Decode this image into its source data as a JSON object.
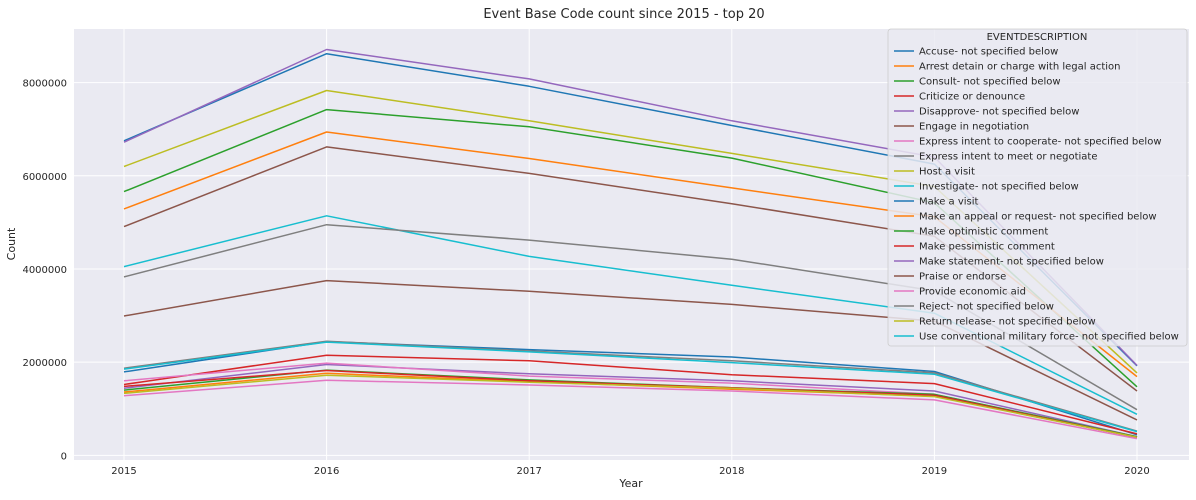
{
  "chart_data": {
    "type": "line",
    "title": "Event Base Code count since 2015 - top 20",
    "xlabel": "Year",
    "ylabel": "Count",
    "x": [
      2015,
      2016,
      2017,
      2018,
      2019,
      2020
    ],
    "x_tick_labels": [
      "2015",
      "2016",
      "2017",
      "2018",
      "2019",
      "2020"
    ],
    "ylim": [
      -100000,
      9150000
    ],
    "y_ticks": [
      0,
      2000000,
      4000000,
      6000000,
      8000000
    ],
    "y_tick_labels": [
      "0",
      "2000000",
      "4000000",
      "6000000",
      "8000000"
    ],
    "grid": true,
    "legend_title": "EVENTDESCRIPTION",
    "legend_position": "top-right",
    "series": [
      {
        "name": "Accuse- not specified below",
        "color": "#1f77b4",
        "values": [
          1790000,
          2440000,
          2270000,
          2110000,
          1800000,
          440000
        ]
      },
      {
        "name": "Arrest detain or charge with legal action",
        "color": "#ff7f0e",
        "values": [
          1360000,
          1760000,
          1580000,
          1420000,
          1270000,
          390000
        ]
      },
      {
        "name": "Consult- not specified below",
        "color": "#2ca02c",
        "values": [
          5660000,
          7420000,
          7050000,
          6380000,
          5420000,
          1470000
        ]
      },
      {
        "name": "Criticize or denounce",
        "color": "#d62728",
        "values": [
          1520000,
          2150000,
          2030000,
          1730000,
          1540000,
          460000
        ]
      },
      {
        "name": "Disapprove- not specified below",
        "color": "#9467bd",
        "values": [
          1440000,
          1950000,
          1750000,
          1600000,
          1380000,
          400000
        ]
      },
      {
        "name": "Engage in negotiation",
        "color": "#8c564b",
        "values": [
          4910000,
          6620000,
          6050000,
          5400000,
          4700000,
          1380000
        ]
      },
      {
        "name": "Express intent to cooperate- not specified below",
        "color": "#e377c2",
        "values": [
          1600000,
          1980000,
          1700000,
          1550000,
          1310000,
          380000
        ]
      },
      {
        "name": "Express intent to meet or negotiate",
        "color": "#7f7f7f",
        "values": [
          1870000,
          2450000,
          2240000,
          2030000,
          1770000,
          520000
        ]
      },
      {
        "name": "Host a visit",
        "color": "#bcbd22",
        "values": [
          6200000,
          7830000,
          7180000,
          6480000,
          5770000,
          1770000
        ]
      },
      {
        "name": "Investigate- not specified below",
        "color": "#17becf",
        "values": [
          4050000,
          5140000,
          4270000,
          3650000,
          3050000,
          880000
        ]
      },
      {
        "name": "Make a visit",
        "color": "#1f77b4",
        "values": [
          6750000,
          8620000,
          7920000,
          7080000,
          6250000,
          1920000
        ]
      },
      {
        "name": "Make an appeal or request- not specified below",
        "color": "#ff7f0e",
        "values": [
          5290000,
          6940000,
          6370000,
          5740000,
          5120000,
          1690000
        ]
      },
      {
        "name": "Make optimistic comment",
        "color": "#2ca02c",
        "values": [
          1400000,
          1830000,
          1620000,
          1450000,
          1310000,
          400000
        ]
      },
      {
        "name": "Make pessimistic comment",
        "color": "#d62728",
        "values": [
          1480000,
          1820000,
          1600000,
          1450000,
          1290000,
          390000
        ]
      },
      {
        "name": "Make statement- not specified below",
        "color": "#9467bd",
        "values": [
          6720000,
          8710000,
          8080000,
          7180000,
          6400000,
          1930000
        ]
      },
      {
        "name": "Praise or endorse",
        "color": "#8c564b",
        "values": [
          2990000,
          3750000,
          3520000,
          3240000,
          2880000,
          760000
        ]
      },
      {
        "name": "Provide economic aid",
        "color": "#e377c2",
        "values": [
          1280000,
          1610000,
          1510000,
          1380000,
          1190000,
          360000
        ]
      },
      {
        "name": "Reject- not specified below",
        "color": "#7f7f7f",
        "values": [
          3830000,
          4950000,
          4620000,
          4210000,
          3530000,
          980000
        ]
      },
      {
        "name": "Return release- not specified below",
        "color": "#bcbd22",
        "values": [
          1330000,
          1720000,
          1570000,
          1440000,
          1260000,
          390000
        ]
      },
      {
        "name": "Use conventional military force- not specified below",
        "color": "#17becf",
        "values": [
          1850000,
          2430000,
          2220000,
          1990000,
          1740000,
          510000
        ]
      }
    ]
  }
}
